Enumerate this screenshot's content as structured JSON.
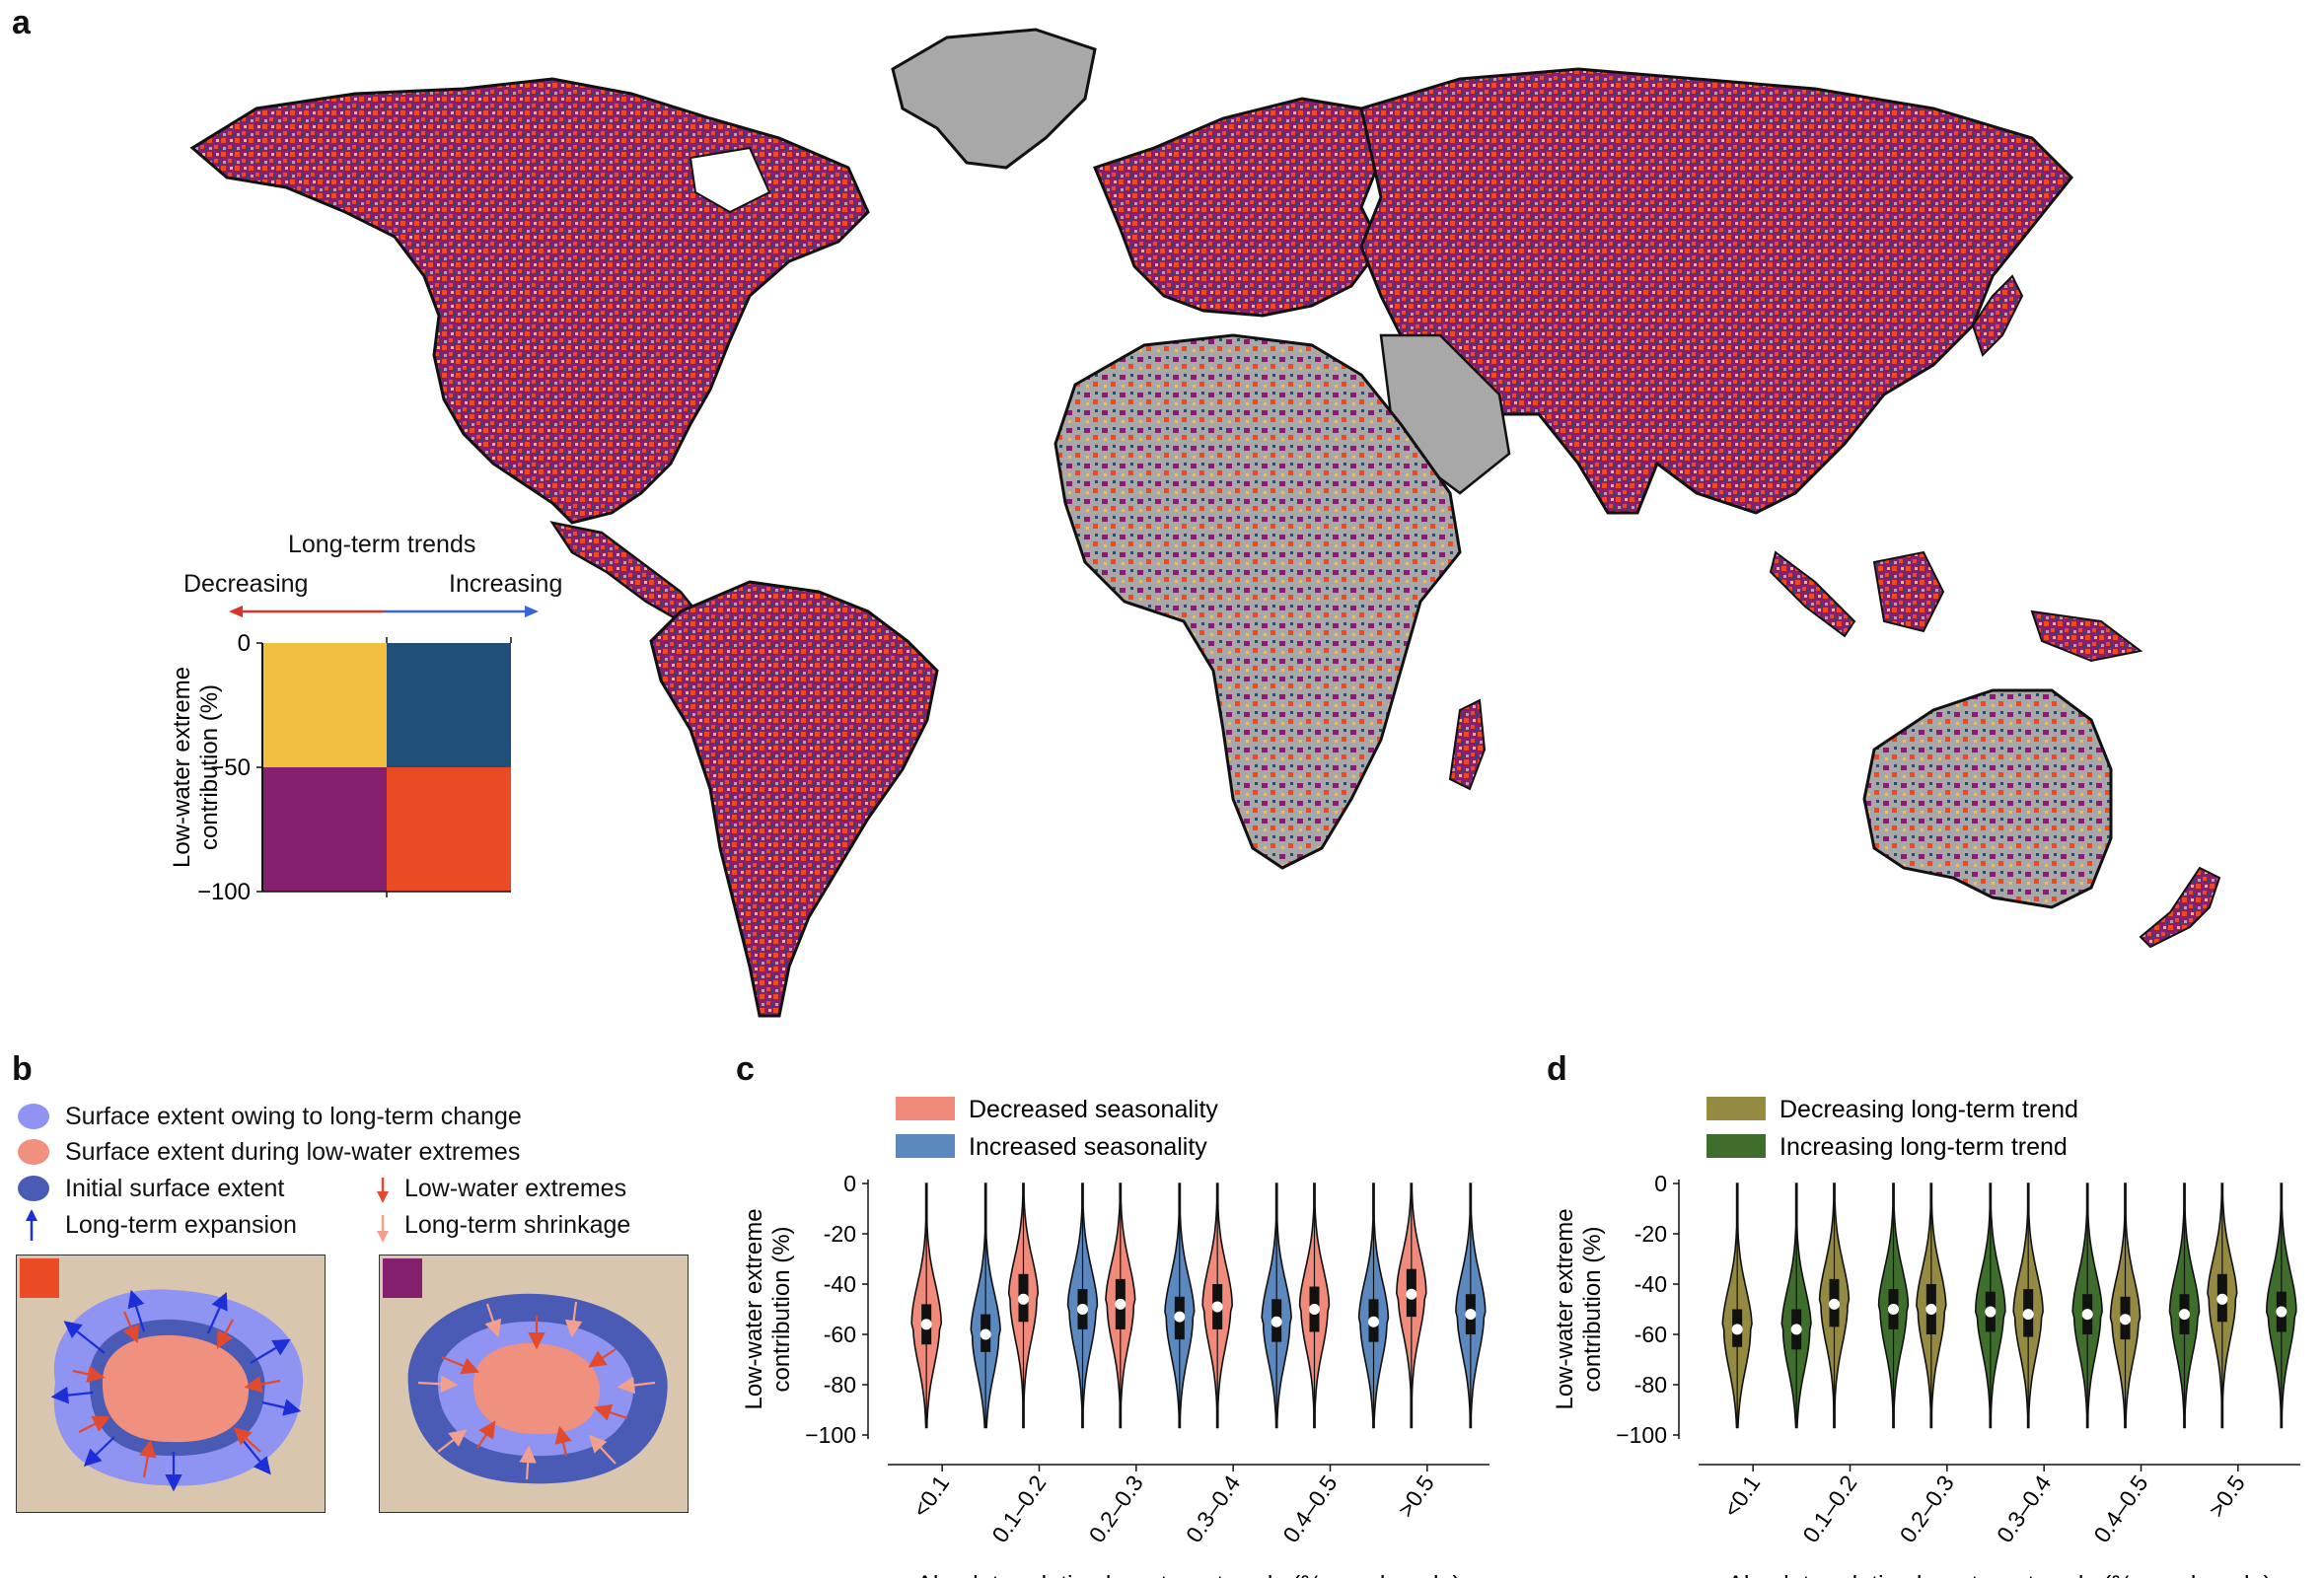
{
  "panels": {
    "a": "a",
    "b": "b",
    "c": "c",
    "d": "d"
  },
  "map_legend": {
    "title": "Long-term trends",
    "decreasing": "Decreasing",
    "increasing": "Increasing",
    "ylabel_line1": "Low-water extreme",
    "ylabel_line2": "contribution (%)",
    "yticks": [
      "0",
      "−50",
      "−100"
    ],
    "colors": {
      "decreasing_low_contribution": "#F2C03E",
      "increasing_low_contribution": "#1F4E79",
      "decreasing_high_contribution": "#85206F",
      "increasing_high_contribution": "#EA4B24"
    }
  },
  "map": {
    "colors": {
      "land_no_data": "#A8A8A8",
      "coast": "#111111"
    }
  },
  "panel_b": {
    "legend": [
      {
        "icon": "light-blue-blob-icon",
        "color": "#8F93F2",
        "label": "Surface extent owing to long-term change"
      },
      {
        "icon": "salmon-blob-icon",
        "color": "#F0907E",
        "label": "Surface extent during low-water extremes"
      },
      {
        "icon": "dark-blue-blob-icon",
        "color": "#4A5BB5",
        "label": "Initial surface extent"
      },
      {
        "icon": "blue-arrow-icon",
        "color": "#1C2FD6",
        "label": "Long-term expansion"
      },
      {
        "icon": "red-arrow-icon",
        "color": "#E14A2E",
        "label": "Low-water extremes"
      },
      {
        "icon": "pink-arrow-icon",
        "color": "#F2A08E",
        "label": "Long-term shrinkage"
      }
    ],
    "swatch_colors": [
      "#EA4B24",
      "#85206F"
    ]
  },
  "chart_c": {
    "legend": [
      {
        "label": "Decreased seasonality",
        "color": "#F08A7B"
      },
      {
        "label": "Increased seasonality",
        "color": "#5B88BE"
      }
    ],
    "ylabel_line1": "Low-water extreme",
    "ylabel_line2": "contribution (%)",
    "xlabel": "Absolute relative long-term trends (% per decade)"
  },
  "chart_d": {
    "legend": [
      {
        "label": "Decreasing long-term trend",
        "color": "#958A42"
      },
      {
        "label": "Increasing long-term trend",
        "color": "#3F6E2C"
      }
    ],
    "ylabel_line1": "Low-water extreme",
    "ylabel_line2": "contribution (%)",
    "xlabel": "Absolute relative long-term trends (% per decade)"
  },
  "chart_data": [
    {
      "type": "violin",
      "panel": "c",
      "categories": [
        "<0.1",
        "0.1–0.2",
        "0.2–0.3",
        "0.3–0.4",
        "0.4–0.5",
        ">0.5"
      ],
      "ylim": [
        -100,
        0
      ],
      "yticks": [
        "0",
        "-20",
        "-40",
        "-60",
        "-80",
        "−100"
      ],
      "series": [
        {
          "name": "Decreased seasonality",
          "medians": [
            -56,
            -46,
            -48,
            -49,
            -50,
            -44
          ],
          "q1": [
            -64,
            -55,
            -58,
            -58,
            -59,
            -53
          ],
          "q3": [
            -48,
            -36,
            -38,
            -40,
            -41,
            -34
          ]
        },
        {
          "name": "Increased seasonality",
          "medians": [
            -60,
            -50,
            -53,
            -55,
            -55,
            -52
          ],
          "q1": [
            -67,
            -58,
            -62,
            -63,
            -63,
            -60
          ],
          "q3": [
            -52,
            -42,
            -45,
            -46,
            -46,
            -44
          ]
        }
      ]
    },
    {
      "type": "violin",
      "panel": "d",
      "categories": [
        "<0.1",
        "0.1–0.2",
        "0.2–0.3",
        "0.3–0.4",
        "0.4–0.5",
        ">0.5"
      ],
      "ylim": [
        -100,
        0
      ],
      "yticks": [
        "0",
        "-20",
        "-40",
        "-60",
        "-80",
        "−100"
      ],
      "series": [
        {
          "name": "Decreasing long-term trend",
          "medians": [
            -58,
            -48,
            -50,
            -52,
            -54,
            -46
          ],
          "q1": [
            -65,
            -57,
            -60,
            -61,
            -62,
            -55
          ],
          "q3": [
            -50,
            -38,
            -40,
            -42,
            -45,
            -36
          ]
        },
        {
          "name": "Increasing long-term trend",
          "medians": [
            -58,
            -50,
            -51,
            -52,
            -52,
            -51
          ],
          "q1": [
            -66,
            -58,
            -59,
            -60,
            -60,
            -59
          ],
          "q3": [
            -50,
            -42,
            -43,
            -44,
            -44,
            -43
          ]
        }
      ]
    }
  ]
}
